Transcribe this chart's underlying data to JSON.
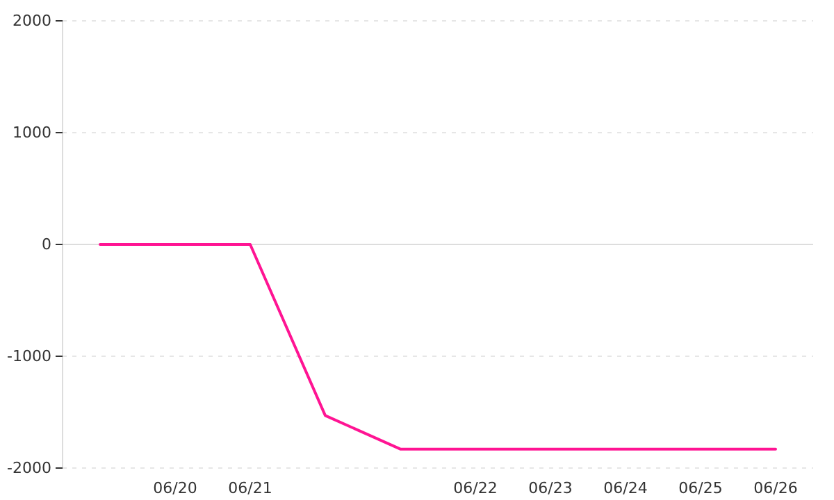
{
  "chart_data": {
    "type": "line",
    "categories": [
      null,
      "06/20",
      "06/21",
      null,
      null,
      "06/22",
      "06/23",
      "06/24",
      "06/25",
      "06/26"
    ],
    "series": [
      {
        "color": "#ff1493",
        "values": [
          0,
          0,
          0,
          -1530,
          -1830,
          -1830,
          -1830,
          -1830,
          -1830,
          -1830
        ]
      }
    ],
    "ylim": [
      -2000,
      2000
    ],
    "yticks": [
      -2000,
      -1000,
      0,
      1000,
      2000
    ],
    "grid": "y",
    "marker": "none",
    "line_style": "solid"
  }
}
